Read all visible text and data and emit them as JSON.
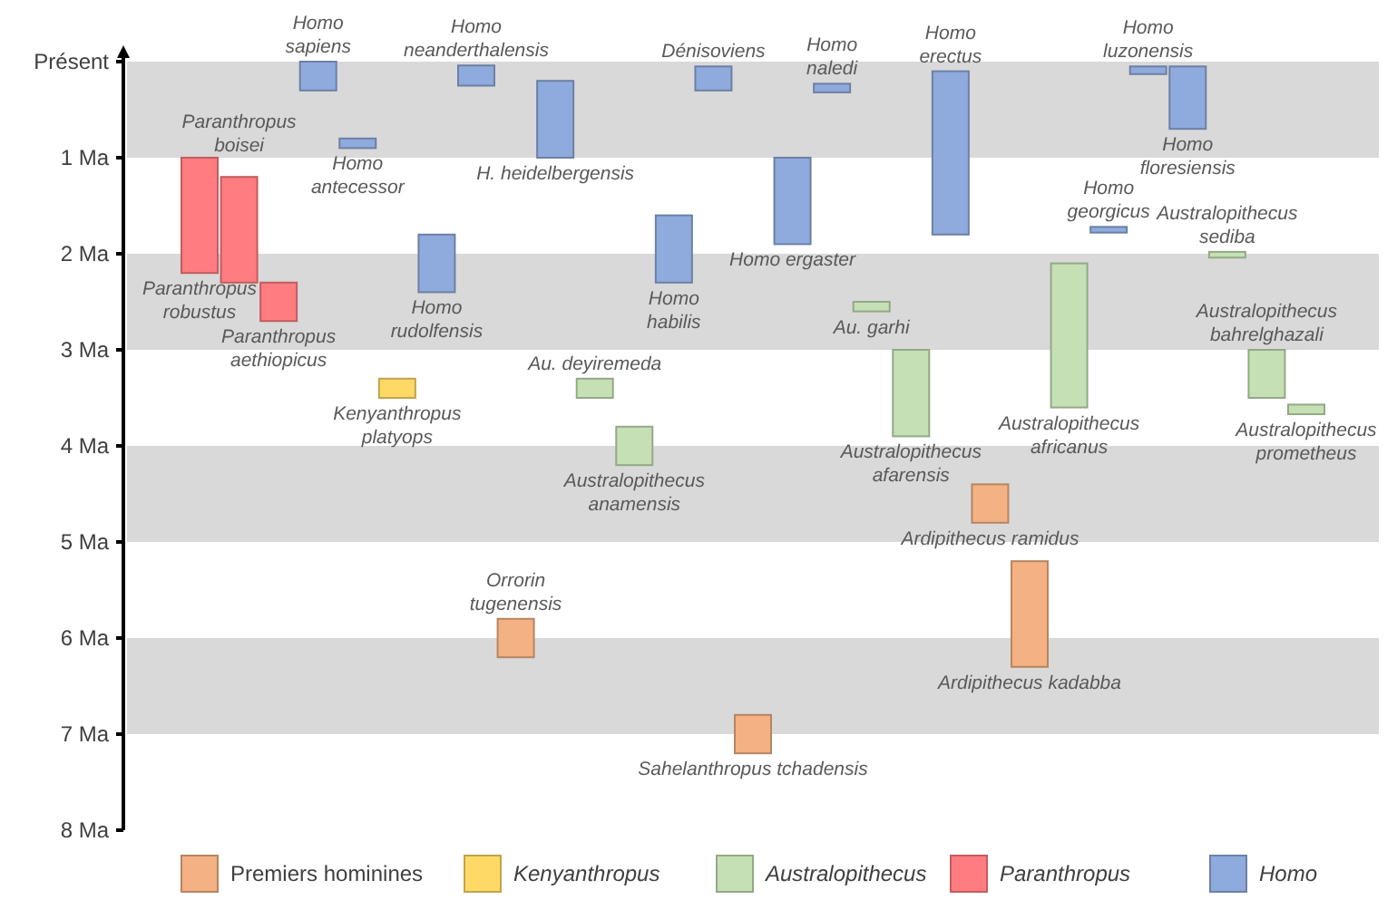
{
  "chart_data": {
    "type": "bar",
    "categories": [
      "Paranthropus robustus",
      "Paranthropus boisei",
      "Paranthropus aethiopicus",
      "Homo sapiens",
      "Homo antecessor",
      "Kenyanthropus platyops",
      "Homo rudolfensis",
      "Homo neanderthalensis",
      "Orrorin tugenensis",
      "H. heidelbergensis",
      "Au. deyiremeda",
      "Australopithecus anamensis",
      "Homo habilis",
      "Dénisoviens",
      "Sahelanthropus tchadensis",
      "Homo ergaster",
      "Homo naledi",
      "Au. garhi",
      "Australopithecus afarensis",
      "Homo erectus",
      "Ardipithecus ramidus",
      "Ardipithecus kadabba",
      "Australopithecus africanus",
      "Homo georgicus",
      "Homo luzonensis",
      "Homo floresiensis",
      "Australopithecus sediba",
      "Australopithecus bahrelghazali",
      "Australopithecus prometheus"
    ],
    "series": [
      {
        "name": "Premiers hominines",
        "color": "#f4b183",
        "values": [
          null,
          null,
          null,
          null,
          null,
          null,
          null,
          null,
          0.4,
          null,
          null,
          null,
          null,
          null,
          0.4,
          null,
          null,
          null,
          null,
          null,
          0.4,
          1.1,
          null,
          null,
          null,
          null,
          null,
          null,
          null
        ],
        "base": [
          null,
          null,
          null,
          null,
          null,
          null,
          null,
          null,
          5.8,
          null,
          null,
          null,
          null,
          null,
          6.8,
          null,
          null,
          null,
          null,
          null,
          4.4,
          5.2,
          null,
          null,
          null,
          null,
          null,
          null,
          null
        ]
      },
      {
        "name": "Kenyanthropus",
        "color": "#ffd966",
        "values": [
          null,
          null,
          null,
          null,
          null,
          0.2,
          null,
          null,
          null,
          null,
          null,
          null,
          null,
          null,
          null,
          null,
          null,
          null,
          null,
          null,
          null,
          null,
          null,
          null,
          null,
          null,
          null,
          null,
          null
        ],
        "base": [
          null,
          null,
          null,
          null,
          null,
          3.3,
          null,
          null,
          null,
          null,
          null,
          null,
          null,
          null,
          null,
          null,
          null,
          null,
          null,
          null,
          null,
          null,
          null,
          null,
          null,
          null,
          null,
          null,
          null
        ]
      },
      {
        "name": "Australopithecus",
        "color": "#c5e0b4",
        "values": [
          null,
          null,
          null,
          null,
          null,
          null,
          null,
          null,
          null,
          null,
          0.2,
          0.4,
          null,
          null,
          null,
          null,
          null,
          0.1,
          0.9,
          null,
          null,
          null,
          1.5,
          null,
          null,
          null,
          0.06,
          0.5,
          0.1
        ],
        "base": [
          null,
          null,
          null,
          null,
          null,
          null,
          null,
          null,
          null,
          null,
          3.3,
          3.8,
          null,
          null,
          null,
          null,
          null,
          2.5,
          3.0,
          null,
          null,
          null,
          2.1,
          null,
          null,
          null,
          1.98,
          3.0,
          3.57
        ]
      },
      {
        "name": "Paranthropus",
        "color": "#ff7c80",
        "values": [
          1.2,
          1.1,
          0.4,
          null,
          null,
          null,
          null,
          null,
          null,
          null,
          null,
          null,
          null,
          null,
          null,
          null,
          null,
          null,
          null,
          null,
          null,
          null,
          null,
          null,
          null,
          null,
          null,
          null,
          null
        ],
        "base": [
          1.0,
          1.2,
          2.3,
          null,
          null,
          null,
          null,
          null,
          null,
          null,
          null,
          null,
          null,
          null,
          null,
          null,
          null,
          null,
          null,
          null,
          null,
          null,
          null,
          null,
          null,
          null,
          null,
          null,
          null
        ]
      },
      {
        "name": "Homo",
        "color": "#8faadc",
        "values": [
          null,
          null,
          null,
          0.3,
          0.1,
          null,
          0.6,
          0.21,
          null,
          0.8,
          null,
          null,
          0.7,
          0.25,
          null,
          0.9,
          0.09,
          null,
          null,
          1.7,
          null,
          null,
          null,
          0.06,
          0.08,
          0.65,
          null,
          null,
          null
        ],
        "base": [
          null,
          null,
          null,
          0.0,
          0.8,
          null,
          1.8,
          0.04,
          null,
          0.2,
          null,
          null,
          1.6,
          0.05,
          null,
          1.0,
          0.23,
          null,
          null,
          0.1,
          null,
          null,
          null,
          1.72,
          0.05,
          0.05,
          null,
          null,
          null
        ]
      }
    ],
    "ylim": [
      8,
      0
    ],
    "yticks": [
      {
        "value": 0,
        "label": "Présent"
      },
      {
        "value": 1,
        "label": "1 Ma"
      },
      {
        "value": 2,
        "label": "2 Ma"
      },
      {
        "value": 3,
        "label": "3 Ma"
      },
      {
        "value": 4,
        "label": "4 Ma"
      },
      {
        "value": 5,
        "label": "5 Ma"
      },
      {
        "value": 6,
        "label": "6 Ma"
      },
      {
        "value": 7,
        "label": "7 Ma"
      },
      {
        "value": 8,
        "label": "8 Ma"
      }
    ],
    "bands": [
      {
        "axis": "y",
        "from": 0,
        "to": 1,
        "color": "#d9d9d9"
      },
      {
        "axis": "y",
        "from": 2,
        "to": 3,
        "color": "#d9d9d9"
      },
      {
        "axis": "y",
        "from": 4,
        "to": 5,
        "color": "#d9d9d9"
      },
      {
        "axis": "y",
        "from": 6,
        "to": 7,
        "color": "#d9d9d9"
      }
    ],
    "legend": "bottom",
    "grid": false
  }
}
